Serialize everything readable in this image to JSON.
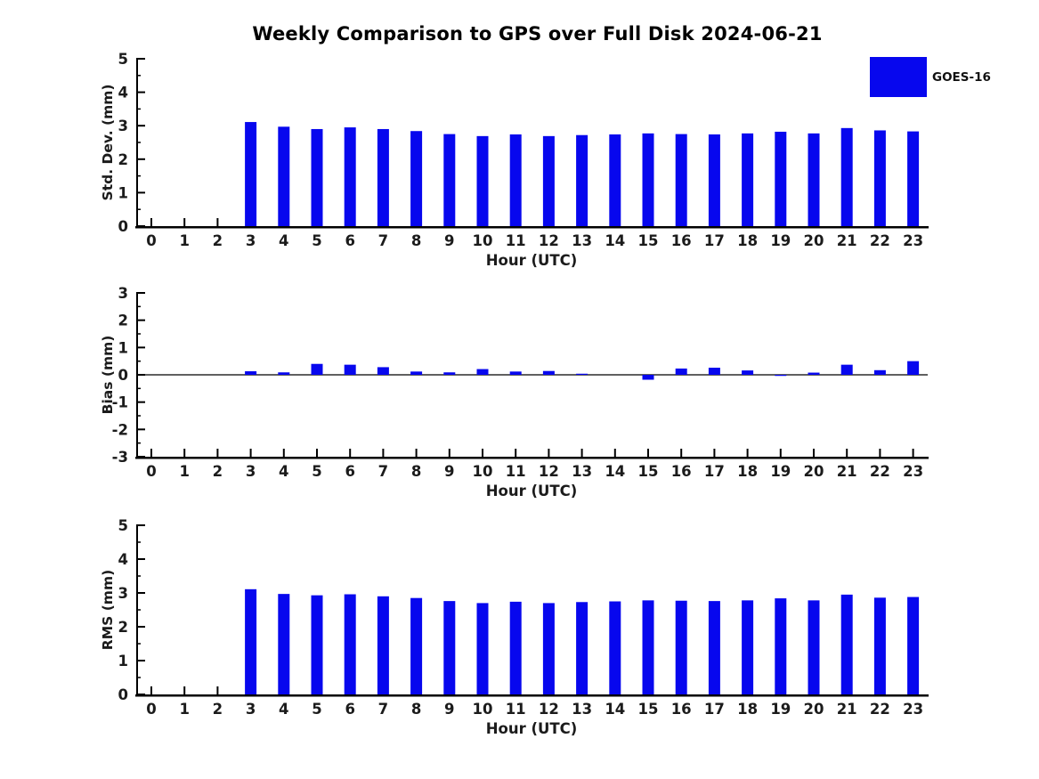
{
  "title": "Weekly Comparison to GPS over Full Disk 2024-06-21",
  "legend": {
    "label": "GOES-16",
    "color": "#0707ee"
  },
  "colors": {
    "bar": "#0707ee",
    "axis": "#000000",
    "text": "#1b1b1b"
  },
  "chart_data": [
    {
      "type": "bar",
      "panel": "std-dev",
      "ylabel": "Std. Dev. (mm)",
      "xlabel": "Hour (UTC)",
      "ylim": [
        0,
        5
      ],
      "ytick_step": 1,
      "yminor_step": 0.5,
      "zero_line": false,
      "grid": false,
      "categories": [
        "0",
        "1",
        "2",
        "3",
        "4",
        "5",
        "6",
        "7",
        "8",
        "9",
        "10",
        "11",
        "12",
        "13",
        "14",
        "15",
        "16",
        "17",
        "18",
        "19",
        "20",
        "21",
        "22",
        "23"
      ],
      "values": [
        null,
        null,
        null,
        3.11,
        2.97,
        2.9,
        2.95,
        2.9,
        2.84,
        2.75,
        2.69,
        2.74,
        2.69,
        2.72,
        2.74,
        2.77,
        2.75,
        2.74,
        2.77,
        2.82,
        2.77,
        2.93,
        2.86,
        2.83
      ]
    },
    {
      "type": "bar",
      "panel": "bias",
      "ylabel": "Bias (mm)",
      "xlabel": "Hour (UTC)",
      "ylim": [
        -3,
        3
      ],
      "ytick_step": 1,
      "yminor_step": 0.5,
      "zero_line": true,
      "grid": false,
      "categories": [
        "0",
        "1",
        "2",
        "3",
        "4",
        "5",
        "6",
        "7",
        "8",
        "9",
        "10",
        "11",
        "12",
        "13",
        "14",
        "15",
        "16",
        "17",
        "18",
        "19",
        "20",
        "21",
        "22",
        "23"
      ],
      "values": [
        null,
        null,
        null,
        0.13,
        0.09,
        0.4,
        0.37,
        0.28,
        0.12,
        0.09,
        0.21,
        0.12,
        0.14,
        0.04,
        0.0,
        -0.18,
        0.23,
        0.26,
        0.16,
        -0.04,
        0.08,
        0.37,
        0.17,
        0.5
      ]
    },
    {
      "type": "bar",
      "panel": "rms",
      "ylabel": "RMS (mm)",
      "xlabel": "Hour (UTC)",
      "ylim": [
        0,
        5
      ],
      "ytick_step": 1,
      "yminor_step": 0.5,
      "zero_line": false,
      "grid": false,
      "categories": [
        "0",
        "1",
        "2",
        "3",
        "4",
        "5",
        "6",
        "7",
        "8",
        "9",
        "10",
        "11",
        "12",
        "13",
        "14",
        "15",
        "16",
        "17",
        "18",
        "19",
        "20",
        "21",
        "22",
        "23"
      ],
      "values": [
        null,
        null,
        null,
        3.11,
        2.97,
        2.93,
        2.96,
        2.9,
        2.85,
        2.76,
        2.7,
        2.74,
        2.7,
        2.73,
        2.75,
        2.78,
        2.77,
        2.76,
        2.78,
        2.84,
        2.78,
        2.95,
        2.86,
        2.88
      ]
    }
  ]
}
